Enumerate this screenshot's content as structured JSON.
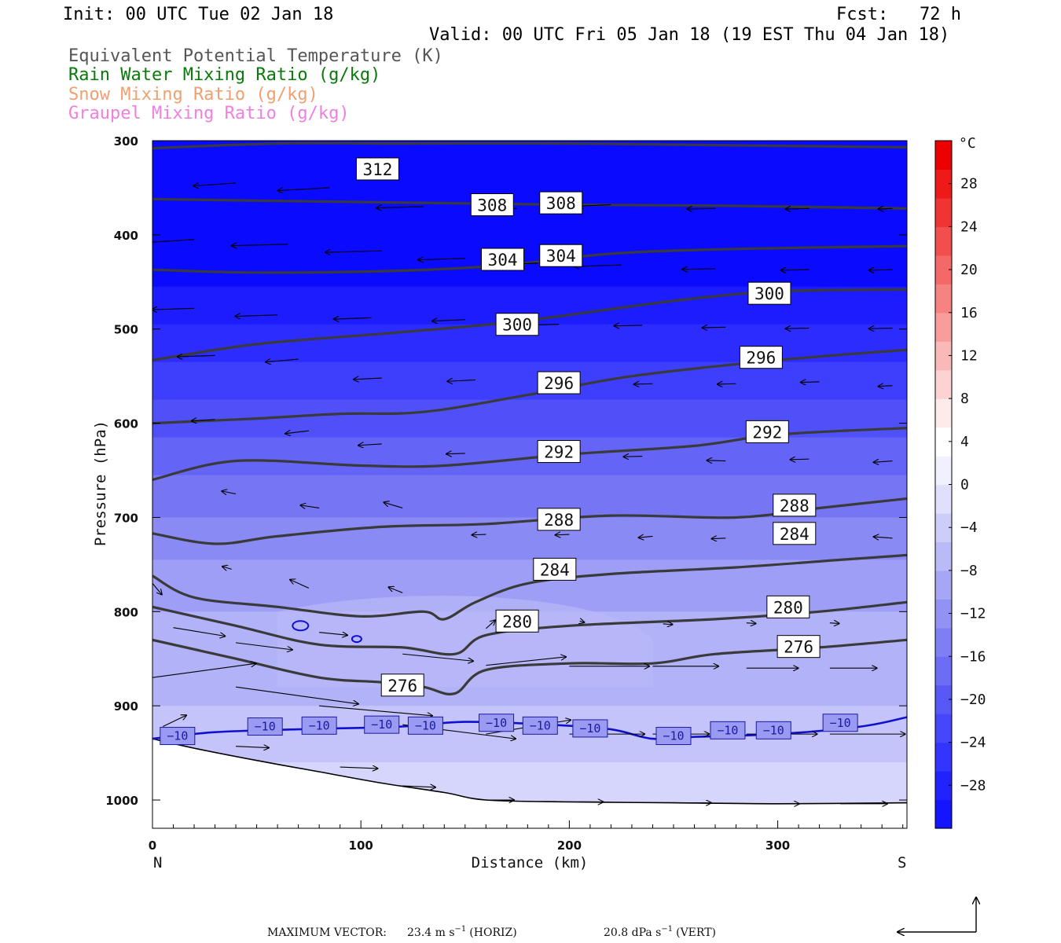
{
  "header": {
    "init": "Init: 00 UTC Tue 02 Jan 18",
    "fcst": "Fcst:   72 h",
    "valid": "Valid: 00 UTC Fri 05 Jan 18 (19 EST Thu 04 Jan 18)",
    "fields": [
      {
        "text": "Equivalent Potential Temperature (K)",
        "color": "#555555"
      },
      {
        "text": "Rain Water Mixing Ratio (g/kg)",
        "color": "#0a7a0a"
      },
      {
        "text": "Snow Mixing Ratio (g/kg)",
        "color": "#f0a070"
      },
      {
        "text": "Graupel Mixing Ratio (g/kg)",
        "color": "#f080e0"
      }
    ]
  },
  "chart_data": {
    "type": "cross-section",
    "xlabel": "Distance (km)",
    "ylabel": "Pressure (hPa)",
    "xlim": [
      0,
      362
    ],
    "ylim": [
      1030,
      300
    ],
    "x_ticks": [
      "0",
      "100",
      "200",
      "300"
    ],
    "x_tick_values": [
      0,
      100,
      200,
      300
    ],
    "y_ticks": [
      "300",
      "400",
      "500",
      "600",
      "700",
      "800",
      "900",
      "1000"
    ],
    "y_tick_values": [
      300,
      400,
      500,
      600,
      700,
      800,
      900,
      1000
    ],
    "end_labels": {
      "left": "N",
      "right": "S"
    },
    "colorbar": {
      "unit": "°C",
      "labels": [
        "28",
        "24",
        "20",
        "16",
        "12",
        "8",
        "4",
        "0",
        "−4",
        "−8",
        "−12",
        "−16",
        "−20",
        "−24",
        "−28"
      ],
      "values": [
        28,
        24,
        20,
        16,
        12,
        8,
        4,
        0,
        -4,
        -8,
        -12,
        -16,
        -20,
        -24,
        -28
      ],
      "colors": [
        "#1414ff",
        "#2222ff",
        "#3434ff",
        "#4646fd",
        "#5858f7",
        "#6c6cf5",
        "#7e7ef5",
        "#9292f5",
        "#a6a6f7",
        "#babaf8",
        "#cdcdfa",
        "#e0e0fc",
        "#f0f0fe",
        "#ffffff",
        "#fdeaea",
        "#fcd2d2",
        "#fab8b8",
        "#f89c9c",
        "#f68282",
        "#f46868",
        "#f24e4e",
        "#f03434",
        "#ee1a1a",
        "#ec0000"
      ]
    },
    "theta_e_contours": [
      {
        "value": 312,
        "points": [
          [
            0,
            308
          ],
          [
            60,
            303
          ],
          [
            120,
            303
          ],
          [
            200,
            303
          ],
          [
            280,
            305
          ],
          [
            362,
            307
          ]
        ]
      },
      {
        "value": 308,
        "points": [
          [
            0,
            362
          ],
          [
            60,
            364
          ],
          [
            130,
            366
          ],
          [
            200,
            368
          ],
          [
            270,
            369
          ],
          [
            362,
            372
          ]
        ]
      },
      {
        "value": 304,
        "points": [
          [
            0,
            437
          ],
          [
            50,
            440
          ],
          [
            120,
            438
          ],
          [
            170,
            432
          ],
          [
            220,
            420
          ],
          [
            280,
            415
          ],
          [
            362,
            412
          ]
        ]
      },
      {
        "value": 300,
        "points": [
          [
            0,
            533
          ],
          [
            50,
            516
          ],
          [
            110,
            505
          ],
          [
            175,
            492
          ],
          [
            250,
            470
          ],
          [
            300,
            460
          ],
          [
            362,
            458
          ]
        ]
      },
      {
        "value": 296,
        "points": [
          [
            0,
            600
          ],
          [
            50,
            595
          ],
          [
            90,
            590
          ],
          [
            130,
            588
          ],
          [
            180,
            570
          ],
          [
            230,
            550
          ],
          [
            300,
            533
          ],
          [
            362,
            522
          ]
        ]
      },
      {
        "value": 292,
        "points": [
          [
            0,
            660
          ],
          [
            40,
            640
          ],
          [
            100,
            645
          ],
          [
            140,
            645
          ],
          [
            200,
            633
          ],
          [
            260,
            624
          ],
          [
            300,
            612
          ],
          [
            362,
            605
          ]
        ]
      },
      {
        "value": 288,
        "points": [
          [
            0,
            717
          ],
          [
            30,
            728
          ],
          [
            60,
            720
          ],
          [
            110,
            710
          ],
          [
            160,
            707
          ],
          [
            220,
            698
          ],
          [
            280,
            700
          ],
          [
            320,
            690
          ],
          [
            362,
            680
          ]
        ]
      },
      {
        "value": 284,
        "points": [
          [
            0,
            762
          ],
          [
            20,
            785
          ],
          [
            60,
            795
          ],
          [
            100,
            805
          ],
          [
            130,
            800
          ],
          [
            140,
            808
          ],
          [
            155,
            790
          ],
          [
            180,
            770
          ],
          [
            220,
            760
          ],
          [
            280,
            753
          ],
          [
            330,
            745
          ],
          [
            362,
            740
          ]
        ]
      },
      {
        "value": 280,
        "points": [
          [
            0,
            795
          ],
          [
            40,
            815
          ],
          [
            80,
            835
          ],
          [
            120,
            838
          ],
          [
            145,
            845
          ],
          [
            160,
            825
          ],
          [
            200,
            815
          ],
          [
            270,
            808
          ],
          [
            320,
            800
          ],
          [
            362,
            790
          ]
        ]
      },
      {
        "value": 276,
        "points": [
          [
            0,
            830
          ],
          [
            40,
            850
          ],
          [
            80,
            870
          ],
          [
            110,
            875
          ],
          [
            130,
            880
          ],
          [
            145,
            887
          ],
          [
            160,
            862
          ],
          [
            200,
            855
          ],
          [
            240,
            855
          ],
          [
            270,
            845
          ],
          [
            320,
            838
          ],
          [
            362,
            830
          ]
        ]
      }
    ],
    "theta_e_labels": [
      {
        "text": "312",
        "x": 108,
        "p": 330
      },
      {
        "text": "308",
        "x": 163,
        "p": 368
      },
      {
        "text": "308",
        "x": 196,
        "p": 366
      },
      {
        "text": "304",
        "x": 168,
        "p": 426
      },
      {
        "text": "304",
        "x": 196,
        "p": 422
      },
      {
        "text": "300",
        "x": 175,
        "p": 495
      },
      {
        "text": "300",
        "x": 296,
        "p": 462
      },
      {
        "text": "296",
        "x": 195,
        "p": 557
      },
      {
        "text": "296",
        "x": 292,
        "p": 530
      },
      {
        "text": "292",
        "x": 195,
        "p": 630
      },
      {
        "text": "292",
        "x": 295,
        "p": 609
      },
      {
        "text": "288",
        "x": 195,
        "p": 702
      },
      {
        "text": "288",
        "x": 308,
        "p": 687
      },
      {
        "text": "284",
        "x": 193,
        "p": 755
      },
      {
        "text": "284",
        "x": 308,
        "p": 717
      },
      {
        "text": "280",
        "x": 175,
        "p": 810
      },
      {
        "text": "280",
        "x": 305,
        "p": 795
      },
      {
        "text": "276",
        "x": 120,
        "p": 878
      },
      {
        "text": "276",
        "x": 310,
        "p": 837
      }
    ],
    "temp_contour_minus10": {
      "value": -10,
      "points": [
        [
          0,
          935
        ],
        [
          30,
          928
        ],
        [
          70,
          925
        ],
        [
          120,
          922
        ],
        [
          150,
          917
        ],
        [
          190,
          920
        ],
        [
          220,
          925
        ],
        [
          240,
          935
        ],
        [
          260,
          933
        ],
        [
          300,
          930
        ],
        [
          340,
          922
        ],
        [
          362,
          912
        ]
      ]
    },
    "temp_labels": [
      {
        "text": "−10",
        "x": 12,
        "p": 932
      },
      {
        "text": "−10",
        "x": 54,
        "p": 922
      },
      {
        "text": "−10",
        "x": 80,
        "p": 921
      },
      {
        "text": "−10",
        "x": 110,
        "p": 920
      },
      {
        "text": "−10",
        "x": 131,
        "p": 921
      },
      {
        "text": "−10",
        "x": 165,
        "p": 918
      },
      {
        "text": "−10",
        "x": 186,
        "p": 921
      },
      {
        "text": "−10",
        "x": 210,
        "p": 924
      },
      {
        "text": "−10",
        "x": 250,
        "p": 932
      },
      {
        "text": "−10",
        "x": 276,
        "p": 926
      },
      {
        "text": "−10",
        "x": 298,
        "p": 926
      },
      {
        "text": "−10",
        "x": 330,
        "p": 918
      }
    ],
    "terrain": [
      [
        0,
        935
      ],
      [
        20,
        945
      ],
      [
        50,
        958
      ],
      [
        80,
        970
      ],
      [
        110,
        982
      ],
      [
        140,
        992
      ],
      [
        160,
        1000
      ],
      [
        200,
        1002
      ],
      [
        250,
        1003
      ],
      [
        300,
        1004
      ],
      [
        362,
        1003
      ]
    ]
  },
  "footer": {
    "max_vector_label": "MAXIMUM VECTOR:",
    "horiz_value": "23.4 m s",
    "horiz_sup": "−1",
    "horiz_unit": "(HORIZ)",
    "vert_value": "20.8 dPa s",
    "vert_sup": "−1",
    "vert_unit": "(VERT)"
  }
}
